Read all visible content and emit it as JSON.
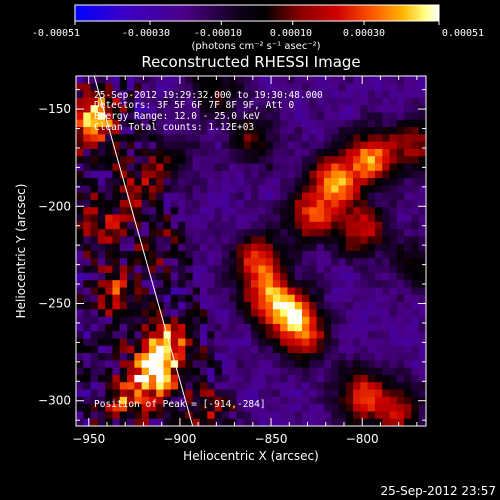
{
  "colorbar": {
    "ticks": [
      "-0.00051",
      "-0.00030",
      "-0.00010",
      "0.00010",
      "0.00030",
      "0.00051"
    ],
    "tick_values": [
      -0.00051,
      -0.0003,
      -0.0001,
      0.0001,
      0.0003,
      0.00051
    ],
    "range": [
      -0.00051,
      0.00051
    ],
    "units": "(photons cm⁻² s⁻¹ asec⁻²)",
    "colors": [
      "#0000ff",
      "#3a00c8",
      "#4b0088",
      "#000000",
      "#8a0000",
      "#d00000",
      "#ff5a00",
      "#ffb400",
      "#ffff80",
      "#ffffff"
    ]
  },
  "plot": {
    "title": "Reconstructed RHESSI Image",
    "xlabel": "Heliocentric X (arcsec)",
    "ylabel": "Heliocentric Y (arcsec)",
    "info_lines": [
      "25-Sep-2012 19:29:32.000 to 19:30:48.000",
      "Detectors: 3F 5F 6F 7F 8F 9F, Att 0",
      "Energy Range: 12.0 - 25.0 keV",
      "Clean     Total counts: 1.12E+03"
    ],
    "peak_label": "Position of Peak = [-914,-284]",
    "timestamp": "25-Sep-2012 23:57"
  },
  "chart_data": {
    "type": "heatmap",
    "title": "Reconstructed RHESSI Image",
    "xlabel": "Heliocentric X (arcsec)",
    "ylabel": "Heliocentric Y (arcsec)",
    "xlim": [
      -957,
      -765
    ],
    "ylim": [
      -313,
      -133
    ],
    "x_ticks": [
      -950,
      -900,
      -850,
      -800
    ],
    "x_tick_labels": [
      "−950",
      "−900",
      "−850",
      "−800"
    ],
    "y_ticks": [
      -150,
      -200,
      -250,
      -300
    ],
    "y_tick_labels": [
      "−150",
      "−200",
      "−250",
      "−300"
    ],
    "limb_line": [
      [
        -947,
        -133
      ],
      [
        -893,
        -313
      ]
    ],
    "peak": [
      -914,
      -284
    ],
    "hot_sources": [
      {
        "x": -815,
        "y": -187,
        "w": 0.9
      },
      {
        "x": -795,
        "y": -175,
        "w": 0.85
      },
      {
        "x": -828,
        "y": -205,
        "w": 0.7
      },
      {
        "x": -800,
        "y": -212,
        "w": 0.65
      },
      {
        "x": -857,
        "y": -228,
        "w": 0.75
      },
      {
        "x": -852,
        "y": -248,
        "w": 0.7
      },
      {
        "x": -838,
        "y": -255,
        "w": 0.75
      },
      {
        "x": -832,
        "y": -268,
        "w": 0.6
      },
      {
        "x": -914,
        "y": -284,
        "w": 1.0
      },
      {
        "x": -905,
        "y": -270,
        "w": 0.6
      },
      {
        "x": -930,
        "y": -300,
        "w": 0.55
      },
      {
        "x": -935,
        "y": -245,
        "w": 0.5
      },
      {
        "x": -945,
        "y": -150,
        "w": 0.55
      },
      {
        "x": -950,
        "y": -160,
        "w": 0.5
      },
      {
        "x": -944,
        "y": -210,
        "w": 0.45
      },
      {
        "x": -905,
        "y": -175,
        "w": 0.35
      },
      {
        "x": -860,
        "y": -165,
        "w": 0.45
      },
      {
        "x": -800,
        "y": -298,
        "w": 0.75
      },
      {
        "x": -780,
        "y": -305,
        "w": 0.55
      },
      {
        "x": -770,
        "y": -168,
        "w": 0.55
      },
      {
        "x": -770,
        "y": -230,
        "w": 0.35
      },
      {
        "x": -880,
        "y": -140,
        "w": 0.4
      },
      {
        "x": -910,
        "y": -220,
        "w": 0.3
      },
      {
        "x": -885,
        "y": -305,
        "w": 0.4
      },
      {
        "x": -925,
        "y": -190,
        "w": 0.35
      }
    ]
  }
}
